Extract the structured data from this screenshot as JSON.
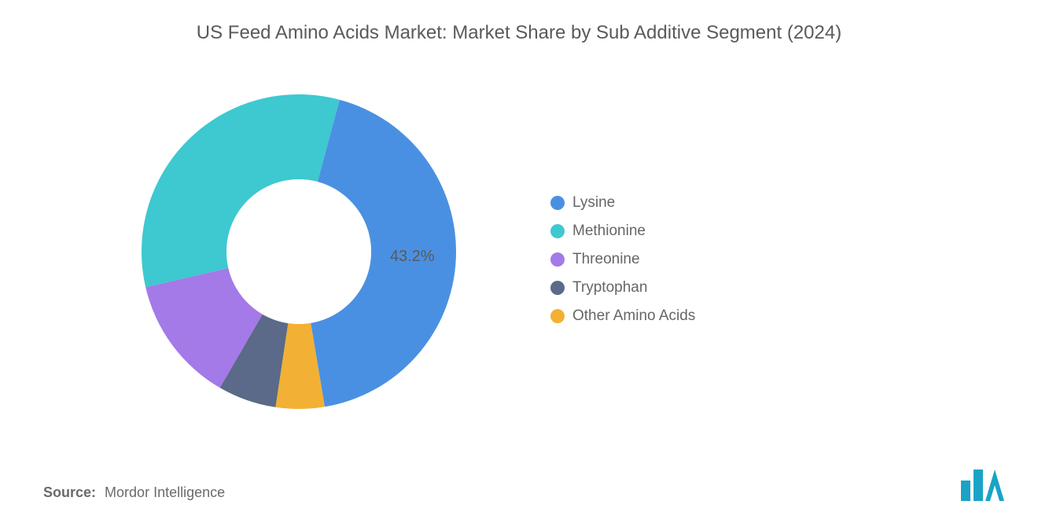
{
  "title": "US Feed Amino Acids Market: Market Share by Sub Additive Segment (2024)",
  "source_label": "Source:",
  "source_value": "Mordor Intelligence",
  "chart": {
    "type": "donut",
    "background_color": "#ffffff",
    "outer_radius": 200,
    "inner_radius": 92,
    "start_angle_deg": -75,
    "label_fontsize": 20,
    "title_fontsize": 24,
    "legend_fontsize": 19,
    "text_color": "#5a5a5a",
    "segments": [
      {
        "name": "Lysine",
        "value": 43.2,
        "color": "#4a90e2",
        "show_label": true,
        "label_text": "43.2%"
      },
      {
        "name": "Other Amino Acids",
        "value": 5.0,
        "color": "#f2b134",
        "show_label": false
      },
      {
        "name": "Tryptophan",
        "value": 6.0,
        "color": "#5a6a88",
        "show_label": false
      },
      {
        "name": "Threonine",
        "value": 13.0,
        "color": "#a479e8",
        "show_label": false
      },
      {
        "name": "Methionine",
        "value": 32.8,
        "color": "#3ec8d0",
        "show_label": false
      }
    ],
    "legend_order": [
      "Lysine",
      "Methionine",
      "Threonine",
      "Tryptophan",
      "Other Amino Acids"
    ]
  },
  "logo": {
    "name": "mordor-intelligence-logo",
    "bar_color": "#1aa3c6",
    "accent_color": "#1aa3c6"
  }
}
